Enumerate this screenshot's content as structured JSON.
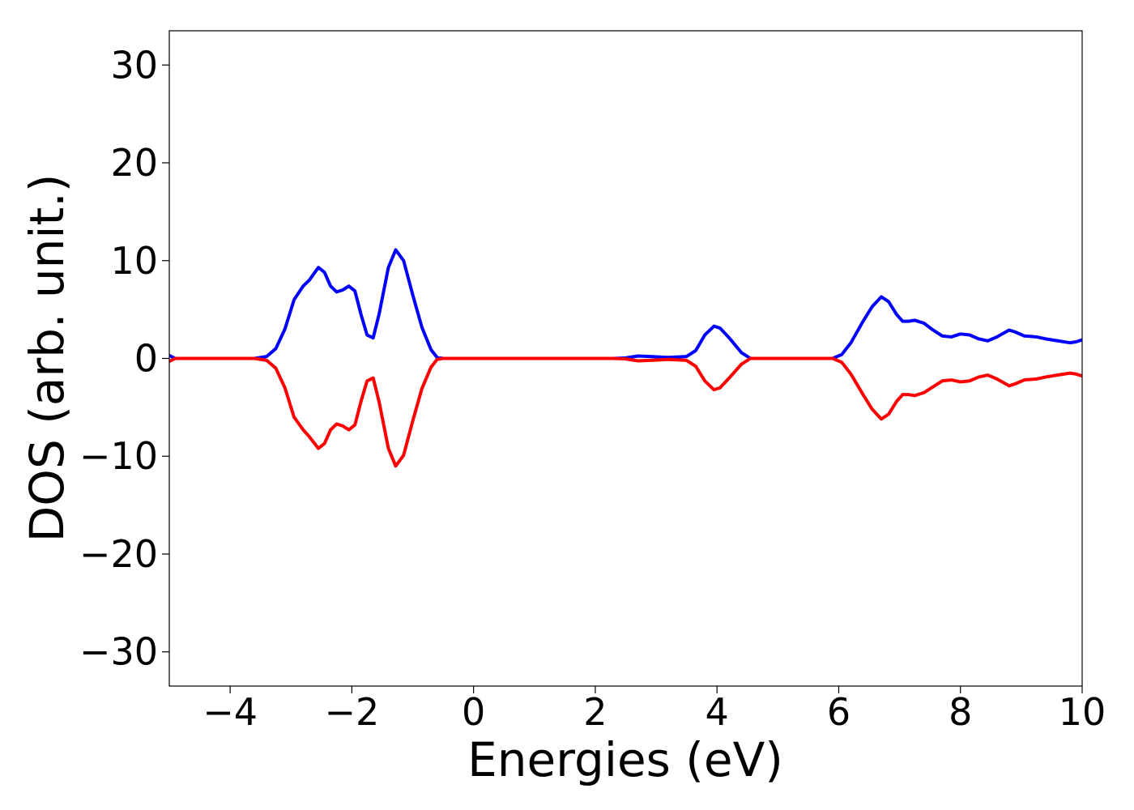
{
  "chart_data": {
    "type": "line",
    "title": "",
    "xlabel": "Energies (eV)",
    "ylabel": "DOS (arb. unit.)",
    "xlim": [
      -5,
      10
    ],
    "ylim": [
      -33.5,
      33.5
    ],
    "xticks": [
      -4,
      -2,
      0,
      2,
      4,
      6,
      8,
      10
    ],
    "yticks": [
      -30,
      -20,
      -10,
      0,
      10,
      20,
      30
    ],
    "xtick_labels": [
      "−4",
      "−2",
      "0",
      "2",
      "4",
      "6",
      "8",
      "10"
    ],
    "ytick_labels": [
      "−30",
      "−20",
      "−10",
      "0",
      "10",
      "20",
      "30"
    ],
    "grid": false,
    "legend": "none",
    "series": [
      {
        "color": "#0000ff",
        "points": [
          [
            -5.0,
            0.3
          ],
          [
            -4.9,
            0.0
          ],
          [
            -3.6,
            0.0
          ],
          [
            -3.4,
            0.2
          ],
          [
            -3.25,
            1.0
          ],
          [
            -3.1,
            3.0
          ],
          [
            -2.95,
            6.0
          ],
          [
            -2.8,
            7.4
          ],
          [
            -2.7,
            8.0
          ],
          [
            -2.55,
            9.3
          ],
          [
            -2.45,
            8.8
          ],
          [
            -2.35,
            7.4
          ],
          [
            -2.25,
            6.8
          ],
          [
            -2.15,
            7.0
          ],
          [
            -2.05,
            7.4
          ],
          [
            -1.95,
            6.9
          ],
          [
            -1.85,
            4.5
          ],
          [
            -1.75,
            2.4
          ],
          [
            -1.65,
            2.1
          ],
          [
            -1.55,
            4.6
          ],
          [
            -1.4,
            9.3
          ],
          [
            -1.28,
            11.1
          ],
          [
            -1.15,
            10.0
          ],
          [
            -1.0,
            6.5
          ],
          [
            -0.85,
            3.2
          ],
          [
            -0.7,
            0.9
          ],
          [
            -0.6,
            0.1
          ],
          [
            -0.5,
            0.0
          ],
          [
            2.3,
            0.0
          ],
          [
            2.5,
            0.05
          ],
          [
            2.7,
            0.25
          ],
          [
            2.9,
            0.2
          ],
          [
            3.2,
            0.1
          ],
          [
            3.5,
            0.2
          ],
          [
            3.65,
            0.8
          ],
          [
            3.8,
            2.4
          ],
          [
            3.95,
            3.3
          ],
          [
            4.05,
            3.1
          ],
          [
            4.2,
            2.1
          ],
          [
            4.4,
            0.6
          ],
          [
            4.55,
            0.0
          ],
          [
            5.9,
            0.0
          ],
          [
            6.05,
            0.4
          ],
          [
            6.2,
            1.6
          ],
          [
            6.4,
            3.8
          ],
          [
            6.55,
            5.3
          ],
          [
            6.7,
            6.3
          ],
          [
            6.82,
            5.8
          ],
          [
            6.95,
            4.5
          ],
          [
            7.05,
            3.8
          ],
          [
            7.15,
            3.8
          ],
          [
            7.25,
            3.9
          ],
          [
            7.4,
            3.6
          ],
          [
            7.55,
            2.9
          ],
          [
            7.7,
            2.3
          ],
          [
            7.85,
            2.2
          ],
          [
            8.0,
            2.5
          ],
          [
            8.15,
            2.4
          ],
          [
            8.3,
            2.0
          ],
          [
            8.45,
            1.8
          ],
          [
            8.6,
            2.2
          ],
          [
            8.8,
            2.9
          ],
          [
            8.9,
            2.7
          ],
          [
            9.05,
            2.3
          ],
          [
            9.25,
            2.2
          ],
          [
            9.4,
            2.0
          ],
          [
            9.6,
            1.8
          ],
          [
            9.8,
            1.6
          ],
          [
            9.9,
            1.7
          ],
          [
            10.0,
            1.9
          ]
        ]
      },
      {
        "color": "#ff0000",
        "points": [
          [
            -5.0,
            -0.3
          ],
          [
            -4.9,
            0.0
          ],
          [
            -3.6,
            0.0
          ],
          [
            -3.4,
            -0.2
          ],
          [
            -3.25,
            -1.0
          ],
          [
            -3.1,
            -3.0
          ],
          [
            -2.95,
            -6.0
          ],
          [
            -2.8,
            -7.3
          ],
          [
            -2.7,
            -8.0
          ],
          [
            -2.55,
            -9.2
          ],
          [
            -2.45,
            -8.7
          ],
          [
            -2.35,
            -7.3
          ],
          [
            -2.25,
            -6.7
          ],
          [
            -2.15,
            -6.9
          ],
          [
            -2.05,
            -7.3
          ],
          [
            -1.95,
            -6.8
          ],
          [
            -1.85,
            -4.4
          ],
          [
            -1.75,
            -2.3
          ],
          [
            -1.65,
            -2.0
          ],
          [
            -1.55,
            -4.5
          ],
          [
            -1.4,
            -9.2
          ],
          [
            -1.28,
            -11.0
          ],
          [
            -1.15,
            -9.9
          ],
          [
            -1.0,
            -6.4
          ],
          [
            -0.85,
            -3.1
          ],
          [
            -0.7,
            -0.9
          ],
          [
            -0.6,
            -0.1
          ],
          [
            -0.5,
            0.0
          ],
          [
            2.3,
            0.0
          ],
          [
            2.5,
            -0.05
          ],
          [
            2.7,
            -0.25
          ],
          [
            2.9,
            -0.2
          ],
          [
            3.2,
            -0.1
          ],
          [
            3.5,
            -0.2
          ],
          [
            3.65,
            -0.8
          ],
          [
            3.8,
            -2.3
          ],
          [
            3.95,
            -3.2
          ],
          [
            4.05,
            -3.0
          ],
          [
            4.2,
            -2.0
          ],
          [
            4.4,
            -0.6
          ],
          [
            4.55,
            0.0
          ],
          [
            5.9,
            0.0
          ],
          [
            6.05,
            -0.4
          ],
          [
            6.2,
            -1.6
          ],
          [
            6.4,
            -3.7
          ],
          [
            6.55,
            -5.2
          ],
          [
            6.7,
            -6.2
          ],
          [
            6.82,
            -5.7
          ],
          [
            6.95,
            -4.4
          ],
          [
            7.05,
            -3.7
          ],
          [
            7.15,
            -3.7
          ],
          [
            7.25,
            -3.8
          ],
          [
            7.4,
            -3.5
          ],
          [
            7.55,
            -2.9
          ],
          [
            7.7,
            -2.3
          ],
          [
            7.85,
            -2.2
          ],
          [
            8.0,
            -2.4
          ],
          [
            8.15,
            -2.3
          ],
          [
            8.3,
            -1.9
          ],
          [
            8.45,
            -1.7
          ],
          [
            8.6,
            -2.1
          ],
          [
            8.8,
            -2.8
          ],
          [
            8.9,
            -2.6
          ],
          [
            9.05,
            -2.2
          ],
          [
            9.25,
            -2.1
          ],
          [
            9.4,
            -1.9
          ],
          [
            9.6,
            -1.7
          ],
          [
            9.8,
            -1.5
          ],
          [
            9.9,
            -1.6
          ],
          [
            10.0,
            -1.8
          ]
        ]
      }
    ]
  }
}
